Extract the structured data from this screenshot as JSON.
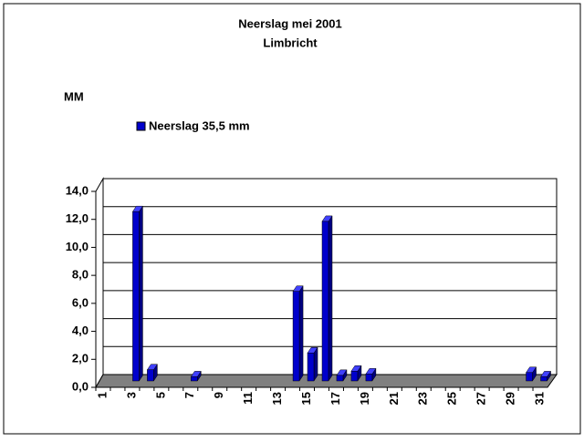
{
  "chart_data": {
    "type": "bar",
    "title": "Neerslag mei 2001",
    "subtitle": "Limbricht",
    "y_label": "MM",
    "categories": [
      "1",
      null,
      "3",
      null,
      "5",
      null,
      "7",
      null,
      "9",
      null,
      "11",
      null,
      "13",
      null,
      "15",
      null,
      "17",
      null,
      "19",
      null,
      "21",
      null,
      "23",
      null,
      "25",
      null,
      "27",
      null,
      "29",
      null,
      "31"
    ],
    "series": [
      {
        "name": "Neerslag 35,5 mm",
        "color": "#0000cc",
        "values": [
          0,
          0,
          12.1,
          0.8,
          0,
          0,
          0.3,
          0,
          0,
          0,
          0,
          0,
          0,
          6.4,
          2.0,
          11.4,
          0.4,
          0.7,
          0.5,
          0,
          0,
          0,
          0,
          0,
          0,
          0,
          0,
          0,
          0,
          0.6,
          0.3
        ]
      }
    ],
    "ylim": [
      0,
      14
    ],
    "yticks": [
      {
        "value": 0,
        "label": "0,0"
      },
      {
        "value": 2,
        "label": "2,0"
      },
      {
        "value": 4,
        "label": "4,0"
      },
      {
        "value": 6,
        "label": "6,0"
      },
      {
        "value": 8,
        "label": "8,0"
      },
      {
        "value": 10,
        "label": "10,0"
      },
      {
        "value": 12,
        "label": "12,0"
      },
      {
        "value": 14,
        "label": "14,0"
      }
    ],
    "grid": true,
    "legend": "top-left"
  }
}
